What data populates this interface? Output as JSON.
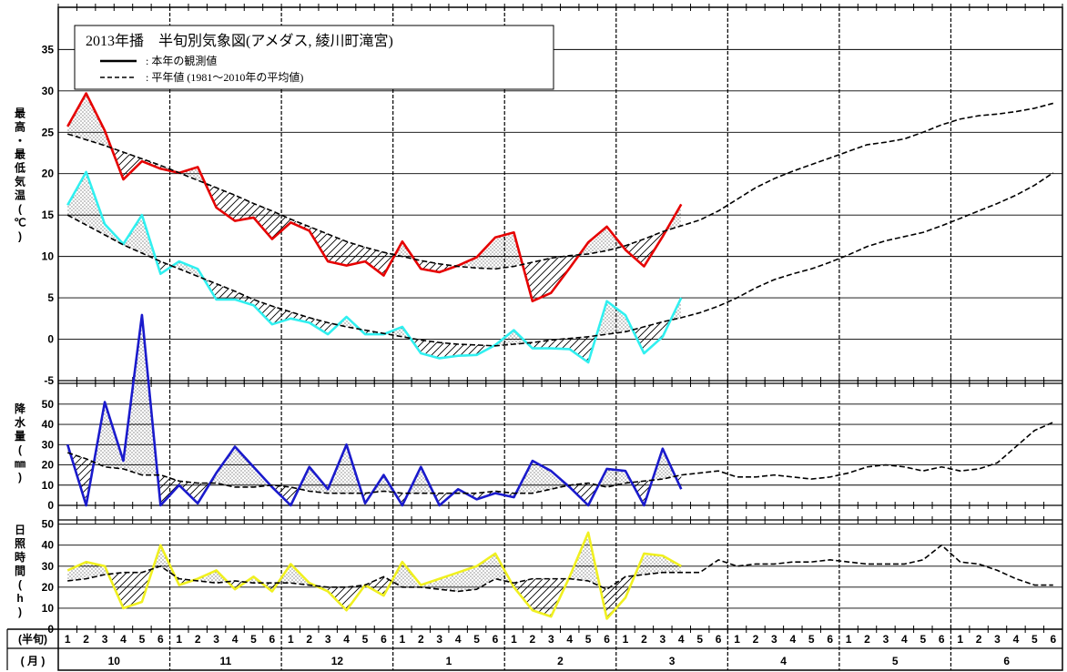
{
  "chart_data": {
    "type": "line",
    "title": "2013年播　半旬別気象図(アメダス, 綾川町滝宮)",
    "legend": [
      {
        "style": "solid",
        "label": ": 本年の観測値"
      },
      {
        "style": "dashed",
        "label": ": 平年値 (1981〜2010年の平均値)"
      }
    ],
    "x_unit_label": "(半旬)",
    "month_unit_label": "( 月 )",
    "months": [
      "10",
      "11",
      "12",
      "1",
      "2",
      "3",
      "4",
      "5",
      "6"
    ],
    "pentads": [
      "1",
      "2",
      "3",
      "4",
      "5",
      "6"
    ],
    "panels": [
      {
        "id": "temperature",
        "ylabel": "最高・最低気温(℃)",
        "ylim": [
          -5,
          39
        ],
        "yticks": [
          -5,
          0,
          5,
          10,
          15,
          20,
          25,
          30,
          35
        ],
        "series": [
          {
            "name": "最高気温",
            "kind": "observed",
            "color": "#e60000",
            "values": [
              25.7,
              29.7,
              25.2,
              19.3,
              21.5,
              20.6,
              20.1,
              20.8,
              15.9,
              14.3,
              14.7,
              12.1,
              14.1,
              13.1,
              9.4,
              8.9,
              9.4,
              7.7,
              11.8,
              8.5,
              8.1,
              8.9,
              9.9,
              12.3,
              12.9,
              4.6,
              5.6,
              8.6,
              11.7,
              13.6,
              10.8,
              8.8,
              12.4,
              16.3
            ]
          },
          {
            "name": "最高気温平年値",
            "kind": "normal",
            "color": "#000000",
            "values": [
              24.8,
              24.1,
              23.4,
              22.6,
              21.8,
              21.0,
              20.1,
              19.2,
              18.3,
              17.4,
              16.4,
              15.5,
              14.5,
              13.6,
              12.7,
              11.8,
              11.1,
              10.5,
              10.0,
              9.5,
              9.1,
              8.8,
              8.6,
              8.5,
              8.8,
              9.3,
              9.8,
              10.1,
              10.3,
              10.7,
              11.3,
              12.1,
              13.0,
              13.7,
              14.4,
              15.5,
              16.9,
              18.3,
              19.4,
              20.3,
              21.1,
              21.9,
              22.7,
              23.5,
              23.8,
              24.2,
              25.0,
              25.9,
              26.6,
              27.0,
              27.2,
              27.5,
              27.9,
              28.5
            ]
          },
          {
            "name": "最低気温",
            "kind": "observed",
            "color": "#30f0f0",
            "values": [
              16.2,
              20.2,
              13.9,
              11.5,
              15.0,
              7.9,
              9.4,
              8.5,
              4.8,
              4.8,
              4.1,
              1.8,
              2.5,
              2.0,
              0.6,
              2.7,
              0.6,
              0.6,
              1.5,
              -1.7,
              -2.3,
              -2.0,
              -1.9,
              -0.7,
              1.1,
              -1.1,
              -1.1,
              -1.2,
              -2.8,
              4.6,
              2.9,
              -1.7,
              0.3,
              5.0
            ]
          },
          {
            "name": "最低気温平年値",
            "kind": "normal",
            "color": "#000000",
            "values": [
              15.0,
              13.8,
              12.6,
              11.4,
              10.4,
              9.4,
              8.5,
              7.6,
              6.7,
              5.8,
              4.8,
              4.0,
              3.3,
              2.6,
              2.0,
              1.5,
              1.1,
              0.7,
              0.3,
              -0.1,
              -0.4,
              -0.6,
              -0.7,
              -0.8,
              -0.6,
              -0.4,
              -0.1,
              0.1,
              0.3,
              0.6,
              0.9,
              1.5,
              2.1,
              2.6,
              3.2,
              4.0,
              5.0,
              6.2,
              7.2,
              7.9,
              8.5,
              9.3,
              10.2,
              11.2,
              11.9,
              12.4,
              12.9,
              13.7,
              14.6,
              15.5,
              16.4,
              17.4,
              18.6,
              20.1
            ]
          }
        ]
      },
      {
        "id": "precipitation",
        "ylabel": "降水量(㎜)",
        "ylim": [
          0,
          58
        ],
        "yticks": [
          0,
          10,
          20,
          30,
          40,
          50
        ],
        "series": [
          {
            "name": "降水量",
            "kind": "observed",
            "color": "#1a1acc",
            "values": [
              30,
              0,
              51,
              22,
              94,
              0,
              10,
              1,
              16,
              29,
              19,
              9,
              0,
              19,
              8,
              30,
              1,
              15,
              0,
              19,
              0,
              8,
              3,
              6,
              4,
              22,
              17,
              9,
              0,
              18,
              17,
              0,
              28,
              8
            ]
          },
          {
            "name": "降水量平年値",
            "kind": "normal",
            "color": "#000000",
            "values": [
              26,
              23,
              19,
              18,
              15,
              15,
              12,
              11,
              11,
              9,
              9,
              10,
              9,
              7,
              6,
              6,
              6,
              7,
              6,
              6,
              6,
              6,
              6,
              7,
              6,
              6,
              8,
              10,
              11,
              9,
              11,
              12,
              13,
              15,
              16,
              17,
              14,
              14,
              15,
              14,
              13,
              14,
              16,
              19,
              20,
              19,
              17,
              19,
              17,
              18,
              21,
              29,
              37,
              41
            ]
          }
        ]
      },
      {
        "id": "sunshine",
        "ylabel": "日照時間(h)",
        "ylim": [
          0,
          52
        ],
        "yticks": [
          0,
          10,
          20,
          30,
          40,
          50
        ],
        "series": [
          {
            "name": "日照時間",
            "kind": "observed",
            "color": "#f0f020",
            "values": [
              28,
              32,
              30,
              10,
              13,
              40,
              21,
              24,
              28,
              19,
              25,
              18,
              31,
              22,
              18,
              9,
              21,
              16,
              32,
              21,
              24,
              27,
              30,
              36,
              20,
              9,
              6,
              25,
              46,
              5,
              15,
              36,
              35,
              30
            ]
          },
          {
            "name": "日照時間平年値",
            "kind": "normal",
            "color": "#000000",
            "values": [
              23,
              24,
              26,
              27,
              27,
              30,
              24,
              23,
              22,
              23,
              22,
              22,
              22,
              21,
              20,
              20,
              21,
              25,
              20,
              20,
              19,
              18,
              19,
              24,
              22,
              24,
              24,
              24,
              23,
              19,
              25,
              26,
              27,
              27,
              27,
              33,
              30,
              31,
              31,
              32,
              32,
              33,
              32,
              31,
              31,
              31,
              33,
              40,
              32,
              31,
              28,
              24,
              21,
              21
            ]
          }
        ]
      }
    ]
  }
}
